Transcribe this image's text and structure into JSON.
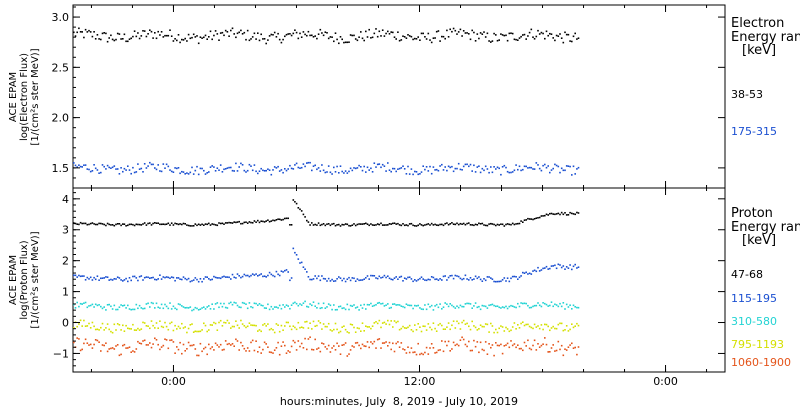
{
  "chart_data": [
    {
      "type": "scatter",
      "panel": "electron",
      "ylabel_lines": [
        "ACE EPAM",
        "log(Electron Flux)",
        "[1/(cm²s ster MeV)]"
      ],
      "y_ticks": [
        "3.0",
        "2.5",
        "2.0",
        "1.5"
      ],
      "y_tick_values": [
        3.0,
        2.5,
        2.0,
        1.5
      ],
      "ylim": [
        1.3,
        3.12
      ],
      "legend_title_lines": [
        "Electron",
        "Energy ranges",
        "[keV]"
      ],
      "series": [
        {
          "name": "38-53",
          "color": "#000000",
          "level": 2.82,
          "noise": 0.055
        },
        {
          "name": "175-315",
          "color": "#1a4fd1",
          "level": 1.5,
          "noise": 0.045
        }
      ]
    },
    {
      "type": "scatter",
      "panel": "proton",
      "ylabel_lines": [
        "ACE EPAM",
        "log(Proton Flux)",
        "[1/(cm²s ster MeV)]"
      ],
      "y_ticks": [
        "4",
        "3",
        "2",
        "1",
        "0",
        "−1"
      ],
      "y_tick_values": [
        4,
        3,
        2,
        1,
        0,
        -1
      ],
      "ylim": [
        -1.6,
        4.35
      ],
      "legend_title_lines": [
        "Proton",
        "Energy ranges",
        "[keV]"
      ],
      "series": [
        {
          "name": "47-68",
          "color": "#000000",
          "level": 3.2,
          "noise": 0.04,
          "bump": 0.8
        },
        {
          "name": "115-195",
          "color": "#1a4fd1",
          "level": 1.45,
          "noise": 0.08,
          "bump": 0.9
        },
        {
          "name": "310-580",
          "color": "#22d3d3",
          "level": 0.55,
          "noise": 0.1,
          "bump": 0.1
        },
        {
          "name": "795-1193",
          "color": "#d4e000",
          "level": -0.1,
          "noise": 0.15,
          "bump": 0.0
        },
        {
          "name": "1060-1900",
          "color": "#e4541a",
          "level": -0.75,
          "noise": 0.22,
          "bump": 0.0
        }
      ]
    }
  ],
  "x_axis": {
    "title": "hours:minutes, July  8, 2019 - July 10, 2019",
    "ticks": [
      "0:00",
      "12:00",
      "0:00"
    ],
    "tick_hours": [
      24,
      36,
      48
    ],
    "xlim_hours": [
      19.1,
      50.9
    ],
    "data_end_hours": 43.8,
    "minor_step_hours": 2
  }
}
